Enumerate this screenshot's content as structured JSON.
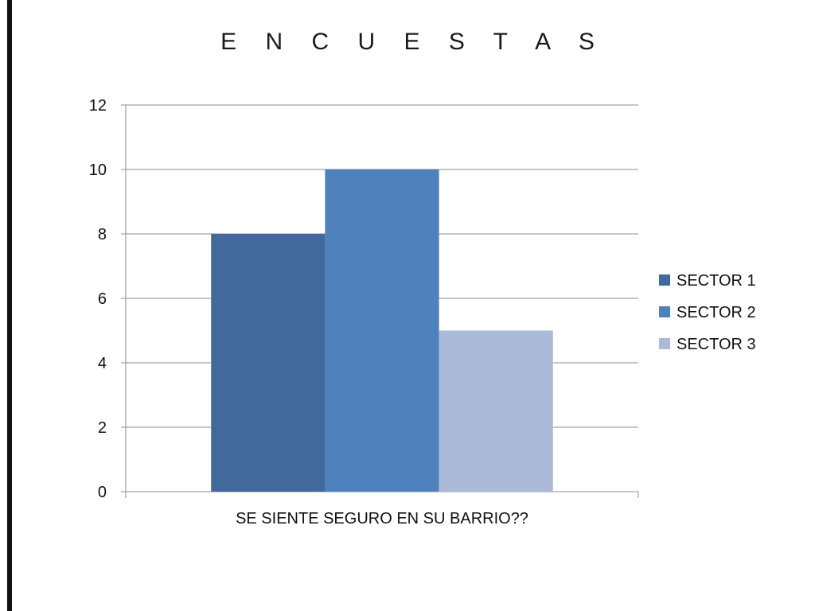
{
  "slide": {
    "title": "E N C U E S T A S"
  },
  "chart_data": {
    "type": "bar",
    "title": "E N C U E S T A S",
    "categories": [
      "SE SIENTE SEGURO EN SU BARRIO??"
    ],
    "series": [
      {
        "name": "SECTOR 1",
        "values": [
          8
        ],
        "color": "#41699c"
      },
      {
        "name": "SECTOR 2",
        "values": [
          10
        ],
        "color": "#4f81bd"
      },
      {
        "name": "SECTOR 3",
        "values": [
          5
        ],
        "color": "#aabad7"
      }
    ],
    "xlabel": "",
    "ylabel": "",
    "ylim": [
      0,
      12
    ],
    "yticks": [
      0,
      2,
      4,
      6,
      8,
      10,
      12
    ],
    "grid": true,
    "legend": "right"
  }
}
